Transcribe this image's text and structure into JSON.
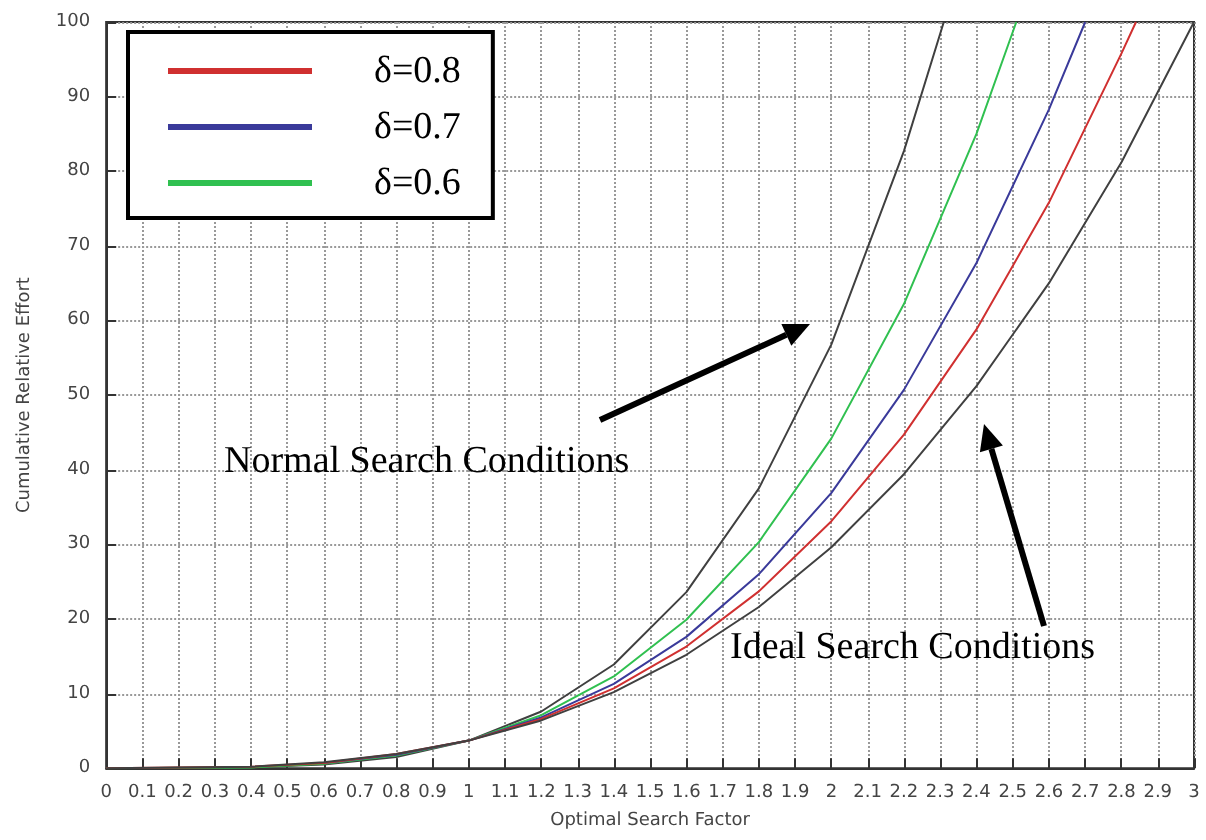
{
  "chart_data": {
    "type": "line",
    "xlabel": "Optimal Search Factor",
    "ylabel": "Cumulative Relative Effort",
    "xlim": [
      0,
      3
    ],
    "ylim": [
      0,
      100
    ],
    "xticks": [
      0,
      0.1,
      0.2,
      0.3,
      0.4,
      0.5,
      0.6,
      0.7,
      0.8,
      0.9,
      1,
      1.1,
      1.2,
      1.3,
      1.4,
      1.5,
      1.6,
      1.7,
      1.8,
      1.9,
      2,
      2.1,
      2.2,
      2.3,
      2.4,
      2.5,
      2.6,
      2.7,
      2.8,
      2.9,
      3
    ],
    "yticks": [
      0,
      10,
      20,
      30,
      40,
      50,
      60,
      70,
      80,
      90,
      100
    ],
    "grid": true,
    "legend": "top left",
    "marker": "none",
    "line_style": "solid",
    "series": [
      {
        "color": "#404040",
        "x": [
          0,
          0.4,
          0.6,
          0.8,
          1.0,
          1.2,
          1.4,
          1.6,
          1.8,
          2.0,
          2.2,
          2.31
        ],
        "values": [
          0,
          0.1,
          0.5,
          1.5,
          3.7,
          7.6,
          13.9,
          23.6,
          37.5,
          56.8,
          82.7,
          100
        ]
      },
      {
        "name": "δ=0.6",
        "color": "#30c050",
        "x": [
          0,
          0.4,
          0.6,
          0.8,
          1.0,
          1.2,
          1.4,
          1.6,
          1.8,
          2.0,
          2.2,
          2.4,
          2.51
        ],
        "values": [
          0,
          0.1,
          0.6,
          1.7,
          3.7,
          7.1,
          12.3,
          19.9,
          30.3,
          44.2,
          62.2,
          85,
          100
        ]
      },
      {
        "name": "δ=0.7",
        "color": "#3a3a9a",
        "x": [
          0.6,
          0.8,
          1.0,
          1.2,
          1.4,
          1.6,
          1.8,
          2.0,
          2.2,
          2.4,
          2.6,
          2.7
        ],
        "values": [
          0.7,
          1.8,
          3.7,
          6.8,
          11.3,
          17.6,
          26,
          36.9,
          50.7,
          67.7,
          88.3,
          100
        ]
      },
      {
        "name": "δ=0.8",
        "color": "#d03030",
        "x": [
          0,
          0.4,
          0.6,
          0.8,
          1.0,
          1.2,
          1.4,
          1.6,
          1.8,
          2.0,
          2.2,
          2.4,
          2.6,
          2.8,
          2.84
        ],
        "values": [
          0,
          0.2,
          0.7,
          1.9,
          3.7,
          6.6,
          10.7,
          16.3,
          23.7,
          33.1,
          44.7,
          58.8,
          75.8,
          95.8,
          100
        ]
      },
      {
        "color": "#404040",
        "x": [
          0,
          0.4,
          0.6,
          0.8,
          1.0,
          1.2,
          1.4,
          1.6,
          1.8,
          2.0,
          2.2,
          2.4,
          2.6,
          2.8,
          3.0
        ],
        "values": [
          0,
          0.2,
          0.8,
          1.9,
          3.7,
          6.4,
          10.2,
          15.2,
          21.6,
          29.6,
          39.4,
          51.2,
          65,
          81.2,
          100
        ]
      }
    ],
    "annotations": [
      "Normal Search Conditions",
      "Ideal Search Conditions"
    ]
  }
}
